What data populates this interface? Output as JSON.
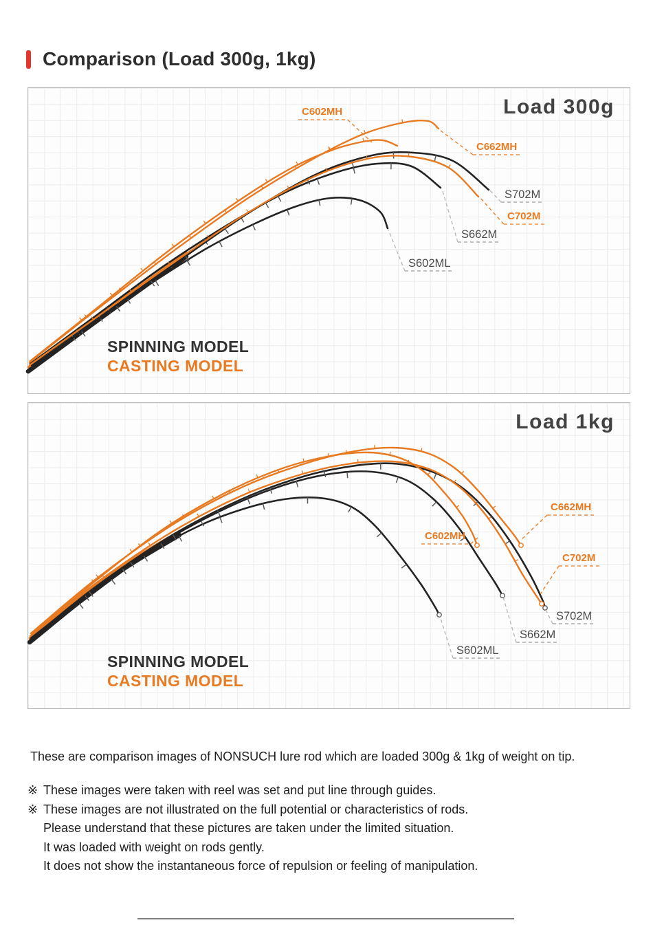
{
  "header": {
    "title": "Comparison (Load 300g, 1kg)"
  },
  "legend": {
    "spinning": "SPINNING MODEL",
    "casting": "CASTING MODEL"
  },
  "colors": {
    "accent_red": "#e5352c",
    "header_text": "#2e2e2e",
    "casting": "#e87a22",
    "spinning": "#232323",
    "spinning_label": "#4c4c4c",
    "leader_gray": "#b5b5b5",
    "underline_gray": "#9c9c9c",
    "guide_gray": "#5a5a5a",
    "title_gray": "#424242",
    "legend_dark": "#333333",
    "divider": "#7d7d7d"
  },
  "chart_data": [
    {
      "type": "line",
      "title": "Load 300g",
      "size": [
        875,
        444
      ],
      "series": [
        {
          "name": "S602ML",
          "model": "spinning",
          "points": [
            [
              5,
              403
            ],
            [
              90,
              341
            ],
            [
              180,
              283
            ],
            [
              260,
              233
            ],
            [
              330,
              197
            ],
            [
              390,
              172
            ],
            [
              440,
              160
            ],
            [
              482,
              163
            ],
            [
              512,
              180
            ],
            [
              523,
              204
            ]
          ]
        },
        {
          "name": "S662M",
          "model": "spinning",
          "points": [
            [
              3,
              401
            ],
            [
              100,
              330
            ],
            [
              200,
              257
            ],
            [
              300,
              193
            ],
            [
              380,
              149
            ],
            [
              450,
              122
            ],
            [
              508,
              110
            ],
            [
              558,
              114
            ],
            [
              600,
              145
            ]
          ]
        },
        {
          "name": "S702M",
          "model": "spinning",
          "points": [
            [
              2,
              408
            ],
            [
              100,
              338
            ],
            [
              210,
              258
            ],
            [
              320,
              182
            ],
            [
              420,
              125
            ],
            [
              500,
              98
            ],
            [
              560,
              94
            ],
            [
              618,
              106
            ],
            [
              670,
              148
            ]
          ]
        },
        {
          "name": "C702M",
          "model": "casting",
          "points": [
            [
              2,
              403
            ],
            [
              100,
              333
            ],
            [
              210,
              255
            ],
            [
              320,
              181
            ],
            [
              420,
              127
            ],
            [
              498,
              102
            ],
            [
              558,
              100
            ],
            [
              612,
              116
            ],
            [
              655,
              158
            ]
          ]
        },
        {
          "name": "C602MH",
          "model": "casting",
          "points": [
            [
              3,
              397
            ],
            [
              100,
              320
            ],
            [
              200,
              240
            ],
            [
              300,
              168
            ],
            [
              380,
              118
            ],
            [
              440,
              91
            ],
            [
              487,
              78
            ],
            [
              516,
              76
            ],
            [
              537,
              84
            ]
          ]
        },
        {
          "name": "C662MH",
          "model": "casting",
          "points": [
            [
              2,
              399
            ],
            [
              100,
              322
            ],
            [
              210,
              238
            ],
            [
              320,
              160
            ],
            [
              420,
              100
            ],
            [
              490,
              66
            ],
            [
              547,
              50
            ],
            [
              582,
              48
            ],
            [
              597,
              59
            ]
          ]
        }
      ],
      "butt": {
        "spinning": [
          [
            0,
            412
          ],
          [
            120,
            324
          ],
          [
            230,
            245
          ]
        ],
        "casting": [
          [
            0,
            406
          ],
          [
            120,
            318
          ],
          [
            230,
            239
          ]
        ]
      },
      "labels": [
        {
          "text": "C602MH",
          "model": "casting",
          "x": 398,
          "y": 26,
          "tip": [
            500,
            79
          ]
        },
        {
          "text": "C662MH",
          "model": "casting",
          "x": 652,
          "y": 77,
          "tip": [
            600,
            62
          ]
        },
        {
          "text": "S702M",
          "model": "spinning",
          "x": 693,
          "y": 146,
          "tip": [
            671,
            148
          ]
        },
        {
          "text": "C702M",
          "model": "casting",
          "x": 697,
          "y": 178,
          "tip": [
            657,
            159
          ]
        },
        {
          "text": "S662M",
          "model": "spinning",
          "x": 630,
          "y": 204,
          "tip": [
            602,
            147
          ]
        },
        {
          "text": "S602ML",
          "model": "spinning",
          "x": 553,
          "y": 246,
          "tip": [
            524,
            206
          ]
        }
      ],
      "tip_rings": []
    },
    {
      "type": "line",
      "title": "Load 1kg",
      "size": [
        875,
        444
      ],
      "series": [
        {
          "name": "S602ML",
          "model": "spinning",
          "points": [
            [
              5,
              345
            ],
            [
              90,
              280
            ],
            [
              170,
              222
            ],
            [
              250,
              178
            ],
            [
              320,
              152
            ],
            [
              380,
              139
            ],
            [
              432,
              139
            ],
            [
              472,
              152
            ],
            [
              506,
              180
            ],
            [
              540,
              221
            ],
            [
              571,
              263
            ],
            [
              591,
              295
            ],
            [
              598,
              308
            ]
          ]
        },
        {
          "name": "S662M",
          "model": "spinning",
          "points": [
            [
              4,
              342
            ],
            [
              100,
              268
            ],
            [
              200,
              200
            ],
            [
              290,
              152
            ],
            [
              370,
              120
            ],
            [
              440,
              103
            ],
            [
              500,
              100
            ],
            [
              550,
              112
            ],
            [
              591,
              141
            ],
            [
              626,
              181
            ],
            [
              656,
              226
            ],
            [
              679,
              261
            ],
            [
              690,
              280
            ]
          ]
        },
        {
          "name": "S702M",
          "model": "spinning",
          "points": [
            [
              3,
              344
            ],
            [
              100,
              266
            ],
            [
              210,
              192
            ],
            [
              310,
              140
            ],
            [
              400,
              107
            ],
            [
              470,
              92
            ],
            [
              530,
              88
            ],
            [
              585,
              99
            ],
            [
              631,
              123
            ],
            [
              669,
              159
            ],
            [
              701,
              201
            ],
            [
              731,
              251
            ],
            [
              748,
              286
            ],
            [
              752,
              298
            ]
          ]
        },
        {
          "name": "C702M",
          "model": "casting",
          "points": [
            [
              3,
              339
            ],
            [
              100,
              261
            ],
            [
              210,
              187
            ],
            [
              310,
              135
            ],
            [
              400,
              103
            ],
            [
              470,
              88
            ],
            [
              530,
              85
            ],
            [
              583,
              96
            ],
            [
              626,
              121
            ],
            [
              661,
              157
            ],
            [
              691,
              200
            ],
            [
              719,
              249
            ],
            [
              741,
              283
            ],
            [
              747,
              292
            ]
          ]
        },
        {
          "name": "C602MH",
          "model": "casting",
          "points": [
            [
              5,
              337
            ],
            [
              100,
              257
            ],
            [
              200,
              181
            ],
            [
              290,
              129
            ],
            [
              370,
              95
            ],
            [
              440,
              77
            ],
            [
              496,
              72
            ],
            [
              541,
              80
            ],
            [
              576,
              100
            ],
            [
              606,
              131
            ],
            [
              631,
              163
            ],
            [
              646,
              189
            ],
            [
              653,
              207
            ]
          ]
        },
        {
          "name": "C662MH",
          "model": "casting",
          "points": [
            [
              4,
              335
            ],
            [
              100,
              255
            ],
            [
              210,
              177
            ],
            [
              310,
              123
            ],
            [
              400,
              89
            ],
            [
              470,
              71
            ],
            [
              531,
              65
            ],
            [
              581,
              73
            ],
            [
              621,
              95
            ],
            [
              656,
              129
            ],
            [
              686,
              166
            ],
            [
              706,
              191
            ],
            [
              717,
              207
            ]
          ]
        }
      ],
      "butt": {
        "spinning": [
          [
            2,
            348
          ],
          [
            120,
            254
          ],
          [
            220,
            192
          ]
        ],
        "casting": [
          [
            2,
            342
          ],
          [
            120,
            248
          ],
          [
            220,
            186
          ]
        ]
      },
      "labels": [
        {
          "text": "C662MH",
          "model": "casting",
          "x": 760,
          "y": 143,
          "tip": [
            716,
            200
          ]
        },
        {
          "text": "C602MH",
          "model": "casting",
          "x": 577,
          "y": 185,
          "tip": [
            654,
            196
          ]
        },
        {
          "text": "C702M",
          "model": "casting",
          "x": 777,
          "y": 217,
          "tip": [
            745,
            278
          ]
        },
        {
          "text": "S702M",
          "model": "spinning",
          "x": 768,
          "y": 301,
          "tip": [
            753,
            301
          ]
        },
        {
          "text": "S662M",
          "model": "spinning",
          "x": 715,
          "y": 328,
          "tip": [
            691,
            282
          ]
        },
        {
          "text": "S602ML",
          "model": "spinning",
          "x": 623,
          "y": 351,
          "tip": [
            599,
            310
          ]
        }
      ],
      "tip_rings": [
        {
          "x": 598,
          "y": 308,
          "model": "spinning"
        },
        {
          "x": 690,
          "y": 280,
          "model": "spinning"
        },
        {
          "x": 752,
          "y": 298,
          "model": "spinning"
        },
        {
          "x": 747,
          "y": 292,
          "model": "casting"
        },
        {
          "x": 653,
          "y": 207,
          "model": "casting"
        },
        {
          "x": 717,
          "y": 207,
          "model": "casting"
        }
      ]
    }
  ],
  "footer": {
    "intro": "These are comparison images of NONSUCH lure rod which are loaded 300g & 1kg of weight on tip.",
    "notes": [
      {
        "prefix": "※",
        "text": "These images were taken with reel was set and put line through guides."
      },
      {
        "prefix": "※",
        "text": "These images are not illustrated on the full potential or characteristics of rods."
      },
      {
        "prefix": "",
        "text": "Please understand that these pictures are taken under the limited situation."
      },
      {
        "prefix": "",
        "text": "It was loaded with weight on rods gently."
      },
      {
        "prefix": "",
        "text": "It does not show the instantaneous force of repulsion or feeling of manipulation."
      }
    ]
  }
}
